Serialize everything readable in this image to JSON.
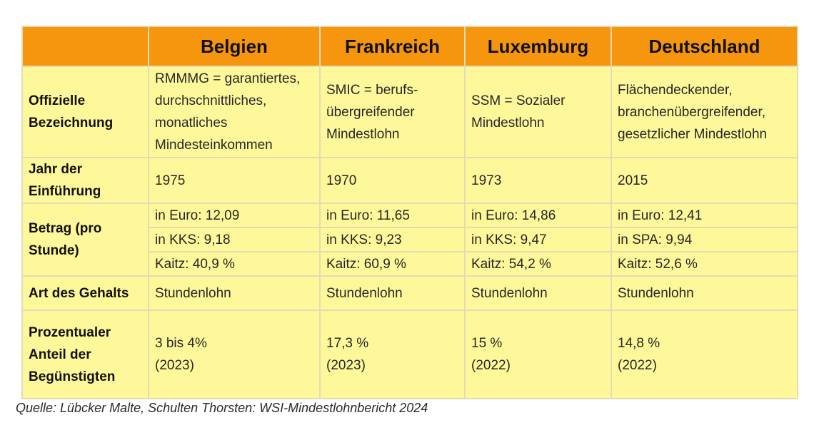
{
  "table": {
    "columns": [
      "",
      "Belgien",
      "Frankreich",
      "Luxemburg",
      "Deutschland"
    ],
    "rows": {
      "bezeichnung": {
        "label": "Offizielle Bezeichnung",
        "values": [
          "RMMMG = garantiertes, durchschnittliches, monatliches Mindesteinkommen",
          "SMIC = berufs-übergreifender Mindestlohn",
          "SSM = Sozialer Mindestlohn",
          "Flächendeckender, branchenübergreifender, gesetzlicher Mindestlohn"
        ]
      },
      "jahr": {
        "label": "Jahr der Einführung",
        "values": [
          "1975",
          "1970",
          "1973",
          "2015"
        ]
      },
      "betrag": {
        "label": "Betrag (pro Stunde)",
        "euro": [
          "in Euro: 12,09",
          "in Euro: 11,65",
          "in Euro: 14,86",
          "in Euro: 12,41"
        ],
        "kks": [
          "in KKS: 9,18",
          "in KKS: 9,23",
          "in KKS: 9,47",
          "in SPA: 9,94"
        ],
        "kaitz": [
          "Kaitz: 40,9 %",
          "Kaitz: 60,9 %",
          "Kaitz: 54,2 %",
          "Kaitz: 52,6 %"
        ]
      },
      "art": {
        "label": "Art des Gehalts",
        "values": [
          "Stundenlohn",
          "Stundenlohn",
          "Stundenlohn",
          "Stundenlohn"
        ]
      },
      "anteil": {
        "label": "Prozentualer Anteil der Begünstigten",
        "values": [
          "3 bis 4%",
          "17,3 %",
          "15 %",
          "14,8 %"
        ],
        "years": [
          "(2023)",
          "(2023)",
          "(2022)",
          "(2022)"
        ]
      }
    }
  },
  "source": "Quelle: Lübcker Malte, Schulten Thorsten: WSI-Mindestlohnbericht 2024",
  "colors": {
    "header_bg": "#f5960e",
    "cell_bg": "#fff89a",
    "border": "#e2dcb5"
  }
}
